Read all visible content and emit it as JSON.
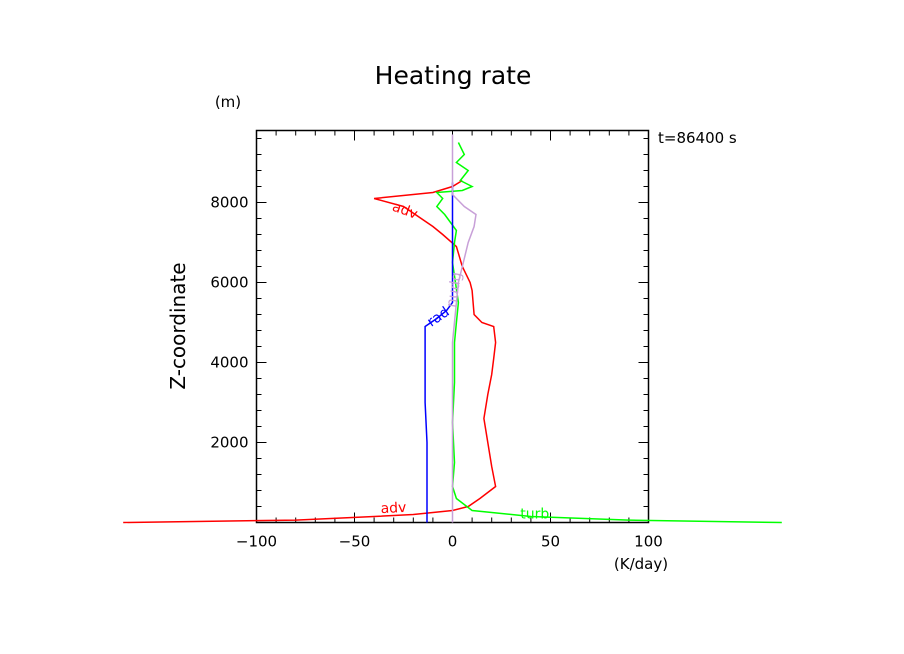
{
  "chart_data": {
    "type": "line",
    "title": "Heating rate",
    "ylabel": "Z-coordinate",
    "y_unit": "(m)",
    "x_unit": "(K/day)",
    "time_label": "t=86400 s",
    "xlim": [
      -100,
      100
    ],
    "ylim": [
      0,
      9800
    ],
    "x_ticks": [
      -100,
      -50,
      0,
      50,
      100
    ],
    "x_tick_labels": [
      "−100",
      "−50",
      "0",
      "50",
      "100"
    ],
    "y_ticks": [
      2000,
      4000,
      6000,
      8000
    ],
    "y_tick_labels": [
      "2000",
      "4000",
      "6000",
      "8000"
    ],
    "grid": false,
    "series": [
      {
        "name": "adv",
        "color": "#ff0000",
        "points": [
          [
            -168,
            0
          ],
          [
            -80,
            60
          ],
          [
            -40,
            150
          ],
          [
            -20,
            200
          ],
          [
            0,
            300
          ],
          [
            8,
            400
          ],
          [
            14,
            600
          ],
          [
            22,
            900
          ],
          [
            20,
            1400
          ],
          [
            18,
            2000
          ],
          [
            16,
            2600
          ],
          [
            18,
            3200
          ],
          [
            20,
            3700
          ],
          [
            21,
            4100
          ],
          [
            22,
            4500
          ],
          [
            21,
            4900
          ],
          [
            15,
            5000
          ],
          [
            11,
            5200
          ],
          [
            10,
            5800
          ],
          [
            9,
            6000
          ],
          [
            5,
            6400
          ],
          [
            2,
            6900
          ],
          [
            -5,
            7200
          ],
          [
            -10,
            7400
          ],
          [
            -25,
            7900
          ],
          [
            -40,
            8100
          ],
          [
            -10,
            8250
          ],
          [
            0,
            8400
          ],
          [
            5,
            8550
          ]
        ]
      },
      {
        "name": "turb",
        "color": "#00ff00",
        "points": [
          [
            168,
            0
          ],
          [
            90,
            60
          ],
          [
            40,
            150
          ],
          [
            10,
            300
          ],
          [
            2,
            600
          ],
          [
            0,
            900
          ],
          [
            1,
            1500
          ],
          [
            0,
            2500
          ],
          [
            1,
            3500
          ],
          [
            1,
            4500
          ],
          [
            2,
            5000
          ],
          [
            3,
            5500
          ],
          [
            0,
            6500
          ],
          [
            1,
            7000
          ],
          [
            2,
            7300
          ],
          [
            -4,
            7700
          ],
          [
            -8,
            7900
          ],
          [
            -5,
            8100
          ],
          [
            -8,
            8250
          ],
          [
            5,
            8300
          ],
          [
            10,
            8400
          ],
          [
            4,
            8550
          ],
          [
            8,
            8800
          ],
          [
            2,
            9000
          ],
          [
            6,
            9200
          ],
          [
            3,
            9500
          ]
        ]
      },
      {
        "name": "rad",
        "color": "#0000ff",
        "points": [
          [
            -13,
            0
          ],
          [
            -13,
            1000
          ],
          [
            -13,
            2000
          ],
          [
            -14,
            3000
          ],
          [
            -14,
            4000
          ],
          [
            -14,
            4900
          ],
          [
            -8,
            5100
          ],
          [
            -3,
            5300
          ],
          [
            0,
            5500
          ],
          [
            0,
            8500
          ]
        ]
      },
      {
        "name": "nudg",
        "color": "#c8a0d8",
        "points": [
          [
            0,
            0
          ],
          [
            0,
            4500
          ],
          [
            3,
            6000
          ],
          [
            6,
            6600
          ],
          [
            8,
            7000
          ],
          [
            11,
            7400
          ],
          [
            12,
            7700
          ],
          [
            6,
            7900
          ],
          [
            2,
            8100
          ],
          [
            0,
            8200
          ],
          [
            0,
            9700
          ]
        ]
      }
    ]
  }
}
